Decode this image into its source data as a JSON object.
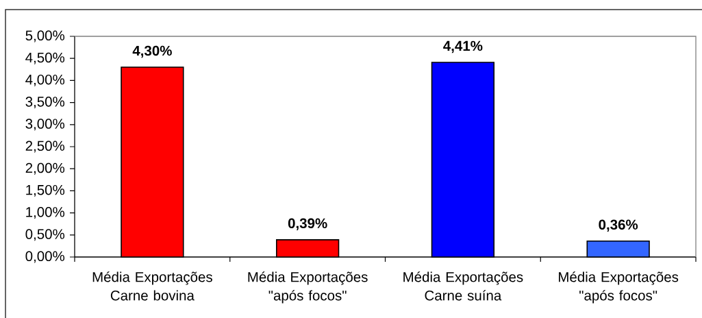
{
  "chart_data": {
    "type": "bar",
    "categories": [
      "Média Exportações Carne bovina",
      "Média Exportações \"após focos\"",
      "Média Exportações Carne suína",
      "Média Exportações \"após focos\""
    ],
    "values": [
      4.3,
      0.39,
      4.41,
      0.36
    ],
    "colors": [
      "#ff0000",
      "#ff0000",
      "#0000ff",
      "#3366ff"
    ],
    "value_labels": [
      "4,30%",
      "0,39%",
      "4,41%",
      "0,36%"
    ],
    "ylim": [
      0,
      5
    ],
    "yticks": [
      {
        "value": 0,
        "label": "0,00%"
      },
      {
        "value": 0.5,
        "label": "0,50%"
      },
      {
        "value": 1,
        "label": "1,00%"
      },
      {
        "value": 1.5,
        "label": "1,50%"
      },
      {
        "value": 2,
        "label": "2,00%"
      },
      {
        "value": 2.5,
        "label": "2,50%"
      },
      {
        "value": 3,
        "label": "3,00%"
      },
      {
        "value": 3.5,
        "label": "3,50%"
      },
      {
        "value": 4,
        "label": "4,00%"
      },
      {
        "value": 4.5,
        "label": "4,50%"
      },
      {
        "value": 5,
        "label": "5,00%"
      }
    ]
  }
}
